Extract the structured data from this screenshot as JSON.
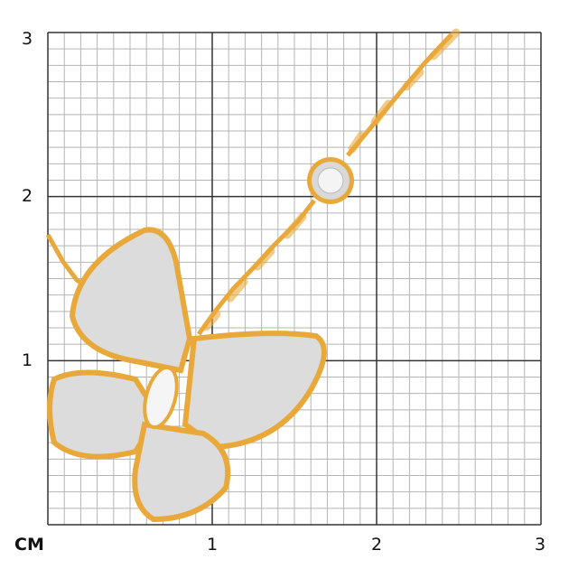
{
  "axis": {
    "unit": "CM",
    "y_labels": [
      "3",
      "2",
      "1"
    ],
    "x_labels": [
      "1",
      "2",
      "3"
    ]
  },
  "colors": {
    "gold": "#e8a93a",
    "diamond": "#e6e6e6",
    "major_grid": "#333333",
    "minor_grid": "#b5b5b5"
  },
  "image": {
    "subject": "butterfly-diamond-pendant-on-chain"
  }
}
